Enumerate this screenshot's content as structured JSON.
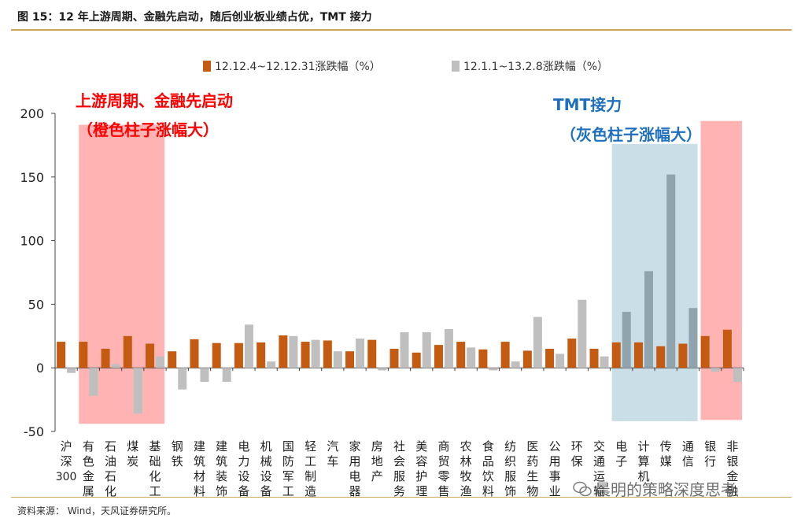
{
  "header": {
    "title": "图 15：12 年上游周期、金融先启动，随后创业板业绩占优，TMT 接力"
  },
  "footer": {
    "source": "资料来源： Wind，天风证券研究所。"
  },
  "watermark": {
    "text": "晨明的策略深度思考"
  },
  "annotations": {
    "left_line1": "上游周期、金融先启动",
    "left_line2": "（橙色柱子涨幅大）",
    "right_line1": "TMT接力",
    "right_line2": "（灰色柱子涨幅大）"
  },
  "colors": {
    "series1": "#c55a11",
    "series2": "#bfbfbf",
    "highlight_red": "#ff9999",
    "highlight_blue": "#9fc3d6",
    "title_rule": "#c8a85a"
  },
  "chart_data": {
    "type": "bar",
    "categories": [
      "沪深300",
      "有色金属",
      "石油石化",
      "煤炭",
      "基础化工",
      "钢铁",
      "建筑材料",
      "建筑装饰",
      "电力设备",
      "机械设备",
      "国防军工",
      "轻工制造",
      "汽车",
      "家用电器",
      "房地产",
      "社会服务",
      "美容护理",
      "商贸零售",
      "农林牧渔",
      "食品饮料",
      "纺织服饰",
      "医药生物",
      "公用事业",
      "环保",
      "交通运输",
      "电子",
      "计算机",
      "传媒",
      "通信",
      "银行",
      "非银金融"
    ],
    "series": [
      {
        "name": "12.12.4~12.12.31涨跌幅（%）",
        "values": [
          20.5,
          20.5,
          15,
          25,
          19,
          13,
          22.5,
          19.5,
          19.5,
          20,
          25.5,
          20.5,
          21.5,
          13,
          22,
          15,
          12,
          18,
          20.5,
          14.5,
          20.5,
          13.5,
          15,
          23,
          15,
          20,
          20,
          17,
          19,
          25,
          30
        ]
      },
      {
        "name": "12.1.1~13.2.8涨跌幅（%）",
        "values": [
          -4,
          -22,
          3,
          -36,
          9,
          -17,
          -11,
          -11,
          34,
          5,
          25,
          22,
          13,
          23,
          -2,
          28,
          28,
          30.5,
          16,
          -2,
          5,
          40,
          11,
          53.5,
          9,
          44,
          76,
          152,
          47,
          -3,
          -11
        ]
      }
    ],
    "y_ticks": [
      "200",
      "150",
      "100",
      "50",
      "0",
      "-50"
    ],
    "ylim": [
      -50,
      200
    ],
    "legend_position": "top-center",
    "highlight_groups": [
      {
        "from": "有色金属",
        "to": "基础化工",
        "color": "red"
      },
      {
        "from": "电子",
        "to": "通信",
        "color": "blue"
      },
      {
        "from": "银行",
        "to": "非银金融",
        "color": "red"
      }
    ]
  }
}
